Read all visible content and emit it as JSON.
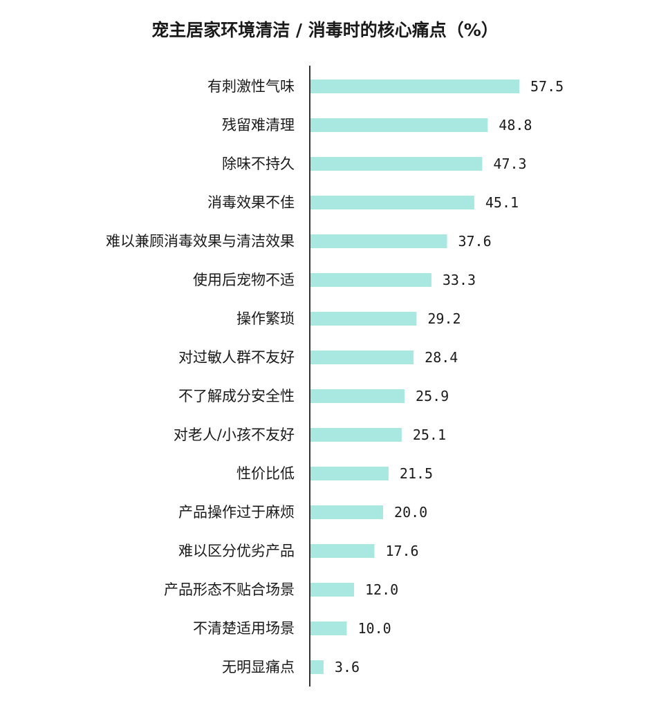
{
  "chart_data": {
    "type": "bar",
    "orientation": "horizontal",
    "title": "宠主居家环境清洁 / 消毒时的核心痛点（%）",
    "categories": [
      "有刺激性气味",
      "残留难清理",
      "除味不持久",
      "消毒效果不佳",
      "难以兼顾消毒效果与清洁效果",
      "使用后宠物不适",
      "操作繁琐",
      "对过敏人群不友好",
      "不了解成分安全性",
      "对老人/小孩不友好",
      "性价比低",
      "产品操作过于麻烦",
      "难以区分优劣产品",
      "产品形态不贴合场景",
      "不清楚适用场景",
      "无明显痛点"
    ],
    "values": [
      57.5,
      48.8,
      47.3,
      45.1,
      37.6,
      33.3,
      29.2,
      28.4,
      25.9,
      25.1,
      21.5,
      20.0,
      17.6,
      12.0,
      10.0,
      3.6
    ],
    "value_labels": [
      "57.5",
      "48.8",
      "47.3",
      "45.1",
      "37.6",
      "33.3",
      "29.2",
      "28.4",
      "25.9",
      "25.1",
      "21.5",
      "20.0",
      "17.6",
      "12.0",
      "10.0",
      "3.6"
    ],
    "xlim": [
      0,
      60
    ],
    "grid": false,
    "legend": "none",
    "colors": {
      "bar": "#a8e8e0",
      "axis": "#333333",
      "text": "#1a1a1a"
    }
  }
}
